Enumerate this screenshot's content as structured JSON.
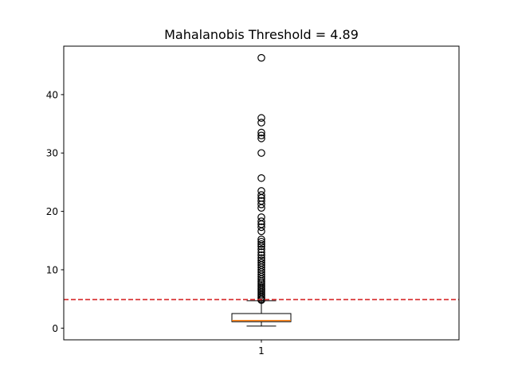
{
  "chart_data": {
    "type": "box",
    "title": "Mahalanobis Threshold = 4.89",
    "xlabel": "",
    "ylabel": "",
    "ylim": [
      -2,
      48.3
    ],
    "y_ticks": [
      0,
      10,
      20,
      30,
      40
    ],
    "categories": [
      "1"
    ],
    "threshold": {
      "value": 4.89,
      "style": "dashed",
      "color": "#d62728"
    },
    "boxes": [
      {
        "category": "1",
        "q1": 1.1,
        "median": 1.3,
        "q3": 2.5,
        "whisker_low": 0.35,
        "whisker_high": 4.7,
        "fliers": [
          46.3,
          36.0,
          35.2,
          33.5,
          33.0,
          32.5,
          30.0,
          25.7,
          23.5,
          22.8,
          22.3,
          21.8,
          21.2,
          20.6,
          19.0,
          18.3,
          17.8,
          17.3,
          16.6,
          15.2,
          14.8,
          14.4,
          14.0,
          13.5,
          13.0,
          12.5,
          12.0,
          11.6,
          11.2,
          10.8,
          10.4,
          10.0,
          9.6,
          9.2,
          8.8,
          8.4,
          8.0,
          7.7,
          7.4,
          7.1,
          6.8,
          6.5,
          6.2,
          5.9,
          5.6,
          5.3,
          5.0,
          4.8
        ]
      }
    ],
    "colors": {
      "box": "#000000",
      "median": "#ff7f0e",
      "flier": "#000000"
    },
    "grid": false,
    "legend": "none"
  }
}
